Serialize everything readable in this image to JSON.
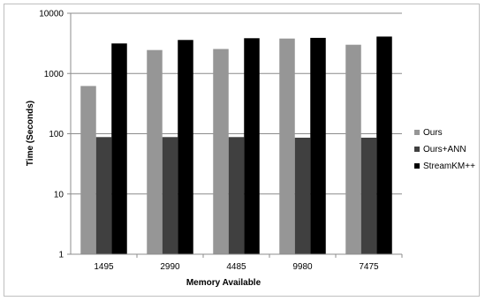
{
  "chart_data": {
    "type": "bar",
    "title": "",
    "xlabel": "Memory Available",
    "ylabel": "Time (Seconds)",
    "yscale": "log",
    "ylim": [
      1,
      10000
    ],
    "yticks": [
      "1",
      "10",
      "100",
      "1000",
      "10000"
    ],
    "ytick_values": [
      1,
      10,
      100,
      1000,
      10000
    ],
    "grid": "horizontal",
    "legend_position": "right",
    "categories": [
      "1495",
      "2990",
      "4485",
      "9980",
      "7475"
    ],
    "series": [
      {
        "name": "Ours",
        "color": "#969696",
        "values": [
          620,
          2450,
          2550,
          3800,
          3000
        ]
      },
      {
        "name": "Ours+ANN",
        "color": "#404040",
        "values": [
          88,
          88,
          88,
          86,
          86
        ]
      },
      {
        "name": "StreamKM++",
        "color": "#000000",
        "values": [
          3150,
          3600,
          3850,
          3900,
          4100
        ]
      }
    ]
  }
}
